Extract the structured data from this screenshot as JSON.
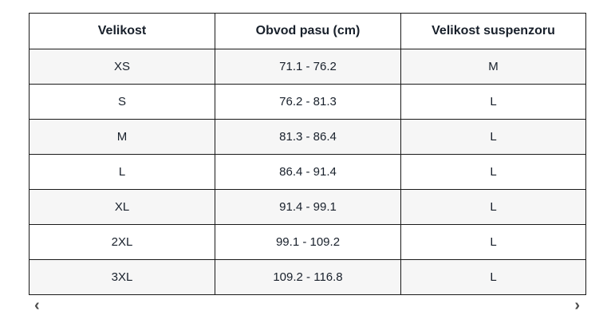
{
  "table": {
    "headers": [
      "Velikost",
      "Obvod pasu (cm)",
      "Velikost suspenzoru"
    ],
    "rows": [
      [
        "XS",
        "71.1 - 76.2",
        "M"
      ],
      [
        "S",
        "76.2 - 81.3",
        "L"
      ],
      [
        "M",
        "81.3 - 86.4",
        "L"
      ],
      [
        "L",
        "86.4 - 91.4",
        "L"
      ],
      [
        "XL",
        "91.4 - 99.1",
        "L"
      ],
      [
        "2XL",
        "99.1 - 109.2",
        "L"
      ],
      [
        "3XL",
        "109.2 - 116.8",
        "L"
      ]
    ]
  },
  "scroll": {
    "left_arrow": "‹",
    "right_arrow": "›"
  },
  "colors": {
    "text": "#18202b",
    "border": "#1a1a1a",
    "row_alt_bg": "#f6f6f6",
    "row_bg": "#ffffff",
    "arrow": "#4d4d4d"
  }
}
